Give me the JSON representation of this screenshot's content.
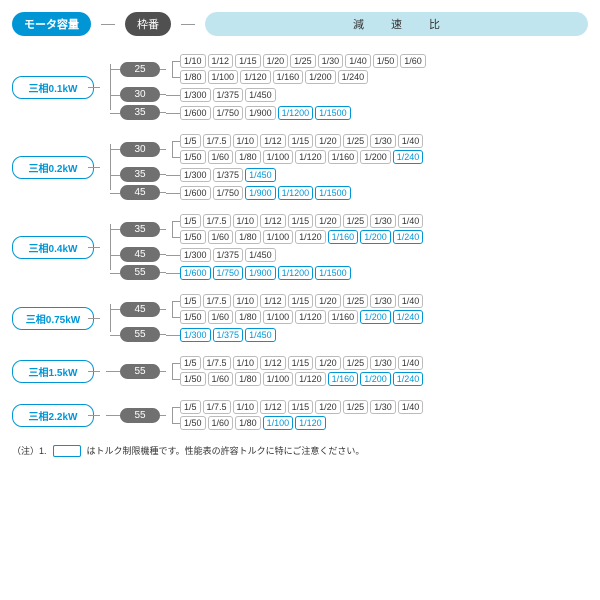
{
  "header": {
    "motor_label": "モータ容量",
    "frame_label": "枠番",
    "ratio_label": "減 速 比"
  },
  "colors": {
    "accent": "#0096d6",
    "frame_bg": "#707070",
    "ratio_bg": "#c0e5ef",
    "border_gray": "#bbbbbb",
    "line": "#999999",
    "bg": "#ffffff"
  },
  "groups": [
    {
      "motor": "三相0.1kW",
      "frames": [
        {
          "frame": "25",
          "rows": [
            [
              {
                "v": "1/10"
              },
              {
                "v": "1/12"
              },
              {
                "v": "1/15"
              },
              {
                "v": "1/20"
              },
              {
                "v": "1/25"
              },
              {
                "v": "1/30"
              },
              {
                "v": "1/40"
              },
              {
                "v": "1/50"
              },
              {
                "v": "1/60"
              }
            ],
            [
              {
                "v": "1/80"
              },
              {
                "v": "1/100"
              },
              {
                "v": "1/120"
              },
              {
                "v": "1/160"
              },
              {
                "v": "1/200"
              },
              {
                "v": "1/240"
              }
            ]
          ]
        },
        {
          "frame": "30",
          "rows": [
            [
              {
                "v": "1/300"
              },
              {
                "v": "1/375"
              },
              {
                "v": "1/450"
              }
            ]
          ]
        },
        {
          "frame": "35",
          "rows": [
            [
              {
                "v": "1/600"
              },
              {
                "v": "1/750"
              },
              {
                "v": "1/900"
              },
              {
                "v": "1/1200",
                "hl": true
              },
              {
                "v": "1/1500",
                "hl": true
              }
            ]
          ]
        }
      ]
    },
    {
      "motor": "三相0.2kW",
      "frames": [
        {
          "frame": "30",
          "rows": [
            [
              {
                "v": "1/5"
              },
              {
                "v": "1/7.5"
              },
              {
                "v": "1/10"
              },
              {
                "v": "1/12"
              },
              {
                "v": "1/15"
              },
              {
                "v": "1/20"
              },
              {
                "v": "1/25"
              },
              {
                "v": "1/30"
              },
              {
                "v": "1/40"
              }
            ],
            [
              {
                "v": "1/50"
              },
              {
                "v": "1/60"
              },
              {
                "v": "1/80"
              },
              {
                "v": "1/100"
              },
              {
                "v": "1/120"
              },
              {
                "v": "1/160"
              },
              {
                "v": "1/200"
              },
              {
                "v": "1/240",
                "hl": true
              }
            ]
          ]
        },
        {
          "frame": "35",
          "rows": [
            [
              {
                "v": "1/300"
              },
              {
                "v": "1/375"
              },
              {
                "v": "1/450",
                "hl": true
              }
            ]
          ]
        },
        {
          "frame": "45",
          "rows": [
            [
              {
                "v": "1/600"
              },
              {
                "v": "1/750"
              },
              {
                "v": "1/900",
                "hl": true
              },
              {
                "v": "1/1200",
                "hl": true
              },
              {
                "v": "1/1500",
                "hl": true
              }
            ]
          ]
        }
      ]
    },
    {
      "motor": "三相0.4kW",
      "frames": [
        {
          "frame": "35",
          "rows": [
            [
              {
                "v": "1/5"
              },
              {
                "v": "1/7.5"
              },
              {
                "v": "1/10"
              },
              {
                "v": "1/12"
              },
              {
                "v": "1/15"
              },
              {
                "v": "1/20"
              },
              {
                "v": "1/25"
              },
              {
                "v": "1/30"
              },
              {
                "v": "1/40"
              }
            ],
            [
              {
                "v": "1/50"
              },
              {
                "v": "1/60"
              },
              {
                "v": "1/80"
              },
              {
                "v": "1/100"
              },
              {
                "v": "1/120"
              },
              {
                "v": "1/160",
                "hl": true
              },
              {
                "v": "1/200",
                "hl": true
              },
              {
                "v": "1/240",
                "hl": true
              }
            ]
          ]
        },
        {
          "frame": "45",
          "rows": [
            [
              {
                "v": "1/300"
              },
              {
                "v": "1/375"
              },
              {
                "v": "1/450"
              }
            ]
          ]
        },
        {
          "frame": "55",
          "rows": [
            [
              {
                "v": "1/600",
                "hl": true
              },
              {
                "v": "1/750",
                "hl": true
              },
              {
                "v": "1/900",
                "hl": true
              },
              {
                "v": "1/1200",
                "hl": true
              },
              {
                "v": "1/1500",
                "hl": true
              }
            ]
          ]
        }
      ]
    },
    {
      "motor": "三相0.75kW",
      "frames": [
        {
          "frame": "45",
          "rows": [
            [
              {
                "v": "1/5"
              },
              {
                "v": "1/7.5"
              },
              {
                "v": "1/10"
              },
              {
                "v": "1/12"
              },
              {
                "v": "1/15"
              },
              {
                "v": "1/20"
              },
              {
                "v": "1/25"
              },
              {
                "v": "1/30"
              },
              {
                "v": "1/40"
              }
            ],
            [
              {
                "v": "1/50"
              },
              {
                "v": "1/60"
              },
              {
                "v": "1/80"
              },
              {
                "v": "1/100"
              },
              {
                "v": "1/120"
              },
              {
                "v": "1/160"
              },
              {
                "v": "1/200",
                "hl": true
              },
              {
                "v": "1/240",
                "hl": true
              }
            ]
          ]
        },
        {
          "frame": "55",
          "rows": [
            [
              {
                "v": "1/300",
                "hl": true
              },
              {
                "v": "1/375",
                "hl": true
              },
              {
                "v": "1/450",
                "hl": true
              }
            ]
          ]
        }
      ]
    },
    {
      "motor": "三相1.5kW",
      "single": true,
      "frames": [
        {
          "frame": "55",
          "rows": [
            [
              {
                "v": "1/5"
              },
              {
                "v": "1/7.5"
              },
              {
                "v": "1/10"
              },
              {
                "v": "1/12"
              },
              {
                "v": "1/15"
              },
              {
                "v": "1/20"
              },
              {
                "v": "1/25"
              },
              {
                "v": "1/30"
              },
              {
                "v": "1/40"
              }
            ],
            [
              {
                "v": "1/50"
              },
              {
                "v": "1/60"
              },
              {
                "v": "1/80"
              },
              {
                "v": "1/100"
              },
              {
                "v": "1/120"
              },
              {
                "v": "1/160",
                "hl": true
              },
              {
                "v": "1/200",
                "hl": true
              },
              {
                "v": "1/240",
                "hl": true
              }
            ]
          ]
        }
      ]
    },
    {
      "motor": "三相2.2kW",
      "single": true,
      "frames": [
        {
          "frame": "55",
          "rows": [
            [
              {
                "v": "1/5"
              },
              {
                "v": "1/7.5"
              },
              {
                "v": "1/10"
              },
              {
                "v": "1/12"
              },
              {
                "v": "1/15"
              },
              {
                "v": "1/20"
              },
              {
                "v": "1/25"
              },
              {
                "v": "1/30"
              },
              {
                "v": "1/40"
              }
            ],
            [
              {
                "v": "1/50"
              },
              {
                "v": "1/60"
              },
              {
                "v": "1/80"
              },
              {
                "v": "1/100",
                "hl": true
              },
              {
                "v": "1/120",
                "hl": true
              }
            ]
          ]
        }
      ]
    }
  ],
  "footer": {
    "prefix": "（注）1.",
    "text": "はトルク制限機種です。性能表の許容トルクに特にご注意ください。"
  }
}
